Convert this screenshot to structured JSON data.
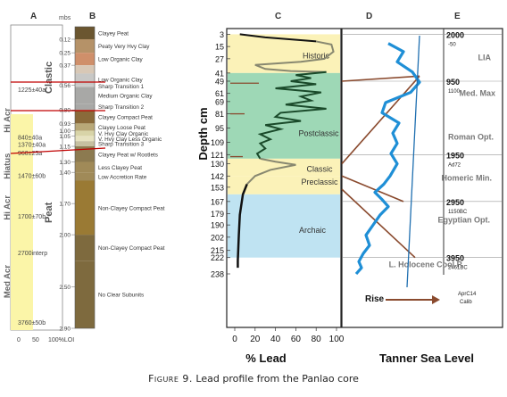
{
  "caption": {
    "label": "Figure 9.",
    "text": "Lead profile from the Panlao core"
  },
  "panel_a": {
    "title": "A",
    "sections": [
      {
        "label": "Hi Acr",
        "top": 0.6,
        "bottom": 1.2
      },
      {
        "label": "Hiatus",
        "top": 1.2,
        "bottom": 1.48
      },
      {
        "label": "Hi Acr",
        "top": 1.48,
        "bottom": 2.0
      },
      {
        "label": "Med Acr",
        "top": 2.0,
        "bottom": 2.9
      }
    ],
    "dates": [
      "1225±40a",
      "840±40a",
      "1370±40a",
      "960±25a",
      "1470±60b",
      "1700±70b",
      "2700interp",
      "3760±50b"
    ],
    "x_ticks": [
      "0",
      "50",
      "100%LOI"
    ]
  },
  "panel_b": {
    "title": "B",
    "axis_title": "mbs",
    "depth_ticks": [
      "0.12",
      "0.25",
      "0.37",
      "0.56",
      "0.80",
      "0.93",
      "1.00",
      "1.05",
      "1.15",
      "1.30",
      "1.40",
      "1.70",
      "2.00",
      "2.50",
      "2.90"
    ],
    "zone_labels": [
      "Clastic",
      "Peat"
    ],
    "units": [
      {
        "label": "Clayey Peat",
        "top": 0.0,
        "bottom": 0.12,
        "color": "#6b5630"
      },
      {
        "label": "Peaty Very Hvy Clay",
        "top": 0.12,
        "bottom": 0.25,
        "color": "#b59268"
      },
      {
        "label": "Low Organic Clay",
        "top": 0.25,
        "bottom": 0.37,
        "color": "#cf8f6a"
      },
      {
        "label": "",
        "top": 0.37,
        "bottom": 0.45,
        "color": "#d8c8b6"
      },
      {
        "label": "Low Organic Clay",
        "top": 0.45,
        "bottom": 0.56,
        "color": "#c8c8c6"
      },
      {
        "label": "Sharp Transition 1",
        "top": 0.56,
        "bottom": 0.58,
        "color": "#c8c8c6"
      },
      {
        "label": "Medium Organic Clay",
        "top": 0.58,
        "bottom": 0.74,
        "color": "#a8a8a6"
      },
      {
        "label": "Sharp Transition 2",
        "top": 0.74,
        "bottom": 0.8,
        "color": "#a8a8a6"
      },
      {
        "label": "Clayey Compact Peat",
        "top": 0.8,
        "bottom": 0.93,
        "color": "#8a6a3a"
      },
      {
        "label": "Clayey Loose Peat",
        "top": 0.93,
        "bottom": 1.0,
        "color": "#b8a878"
      },
      {
        "label": "V. Hvy Clay Organic",
        "top": 1.0,
        "bottom": 1.05,
        "color": "#d8d4a8"
      },
      {
        "label": "V. Hvy Clay Less Organic",
        "top": 1.05,
        "bottom": 1.1,
        "color": "#e6e2c0"
      },
      {
        "label": "Sharp Transition 3",
        "top": 1.1,
        "bottom": 1.15,
        "color": "#c6c0a0"
      },
      {
        "label": "Clayey Peat w/ Rootlets",
        "top": 1.15,
        "bottom": 1.3,
        "color": "#8c7a50"
      },
      {
        "label": "Less Clayey Peat",
        "top": 1.3,
        "bottom": 1.4,
        "color": "#a08a58"
      },
      {
        "label": "Low Accretion Rate",
        "top": 1.4,
        "bottom": 1.48,
        "color": "#a08a58"
      },
      {
        "label": "Non-Clayey Compact Peat",
        "top": 1.48,
        "bottom": 2.0,
        "color": "#9a7a34"
      },
      {
        "label": "Non-Clayey Compact Peat",
        "top": 2.0,
        "bottom": 2.25,
        "color": "#7e6a3e"
      },
      {
        "label": "No Clear Subunits",
        "top": 2.25,
        "bottom": 2.9,
        "color": "#7e6a3e"
      }
    ]
  },
  "panel_c": {
    "title": "C",
    "y_axis_title": "Depth cm",
    "x_axis_title": "% Lead",
    "x_ticks": [
      "0",
      "20",
      "40",
      "60",
      "80",
      "100"
    ],
    "depth_ticks": [
      "3",
      "15",
      "27",
      "41",
      "49",
      "61",
      "69",
      "81",
      "95",
      "109",
      "121",
      "130",
      "142",
      "153",
      "167",
      "179",
      "190",
      "202",
      "215",
      "222",
      "238"
    ],
    "periods": [
      {
        "label": "Historic",
        "top": 3,
        "bottom": 41,
        "color": "#fbf2b8"
      },
      {
        "label": "Postclassic",
        "top": 41,
        "bottom": 125,
        "color": "#9ed8b6"
      },
      {
        "label": "Classic",
        "top": 125,
        "bottom": 142,
        "color": "#fbf2b8"
      },
      {
        "label": "Preclassic",
        "top": 142,
        "bottom": 160,
        "color": "#fbf2b8"
      },
      {
        "label": "Archaic",
        "top": 160,
        "bottom": 222,
        "color": "#bfe3f2"
      }
    ]
  },
  "panel_d": {
    "title": "D",
    "x_axis_title": "Tanner Sea Level"
  },
  "panel_e": {
    "title": "E",
    "age_labels": [
      {
        "main": "2000",
        "sub": "-50",
        "depth": 3
      },
      {
        "main": "950",
        "sub": "1100",
        "depth": 49
      },
      {
        "main": "1950",
        "sub": "Ad72",
        "depth": 121
      },
      {
        "main": "2950",
        "sub": "1150BC",
        "depth": 167
      },
      {
        "main": "3950",
        "sub": "2461BC",
        "depth": 222
      }
    ],
    "events": [
      "LIA",
      "Med. Max",
      "Roman Opt.",
      "Homeric Min.",
      "Egyptian Opt.",
      "L. Holocene Cool P."
    ],
    "legend_rise": "Rise",
    "aprc_lines": [
      "AprC14",
      "Calib"
    ]
  },
  "colors": {
    "lead_black": "#111111",
    "lead_gray": "#888870",
    "lead_green": "#1a4a2a",
    "sea_level": "#1f8fd6",
    "trend": "#1f6fb0",
    "corr_line": "#8a4a2e",
    "red_marker": "#c00000"
  },
  "chart_data": {
    "type": "line",
    "title": "",
    "xlabel": "% Lead",
    "ylabel": "Depth cm",
    "xlim": [
      0,
      100
    ],
    "ylim": [
      238,
      0
    ],
    "series": [
      {
        "values_xy": [
          [
            5,
            3
          ],
          [
            30,
            6
          ],
          [
            80,
            10
          ],
          [
            95,
            13
          ],
          [
            97,
            20
          ],
          [
            88,
            27
          ],
          [
            65,
            30
          ],
          [
            20,
            33
          ],
          [
            30,
            37
          ],
          [
            55,
            39
          ],
          [
            90,
            40
          ]
        ]
      },
      {
        "values_xy": [
          [
            90,
            40
          ],
          [
            60,
            43
          ],
          [
            75,
            46
          ],
          [
            55,
            49
          ],
          [
            80,
            52
          ],
          [
            40,
            56
          ],
          [
            85,
            60
          ],
          [
            65,
            64
          ],
          [
            75,
            68
          ],
          [
            50,
            72
          ],
          [
            90,
            76
          ],
          [
            45,
            80
          ],
          [
            40,
            84
          ],
          [
            65,
            88
          ],
          [
            30,
            92
          ],
          [
            45,
            96
          ],
          [
            25,
            101
          ],
          [
            35,
            106
          ],
          [
            25,
            110
          ],
          [
            30,
            115
          ],
          [
            22,
            120
          ],
          [
            25,
            125
          ]
        ]
      },
      {
        "values_xy": [
          [
            25,
            125
          ],
          [
            40,
            128
          ],
          [
            60,
            131
          ],
          [
            35,
            136
          ],
          [
            20,
            142
          ],
          [
            12,
            150
          ],
          [
            8,
            160
          ],
          [
            5,
            180
          ],
          [
            4,
            200
          ],
          [
            3,
            225
          ],
          [
            3,
            232
          ]
        ]
      }
    ]
  }
}
